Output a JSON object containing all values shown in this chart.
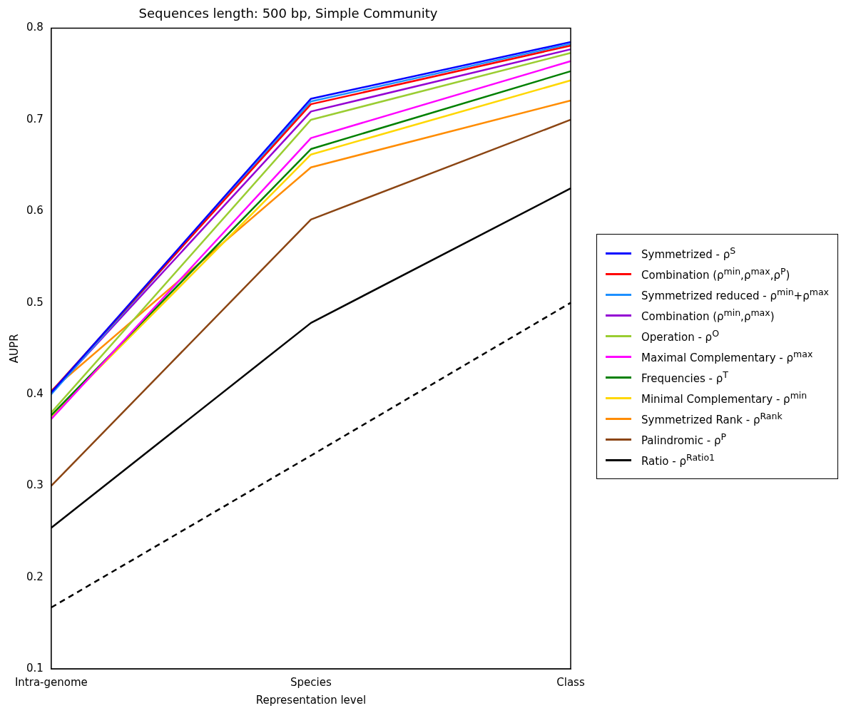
{
  "chart_data": {
    "type": "line",
    "title": "Sequences length: 500 bp, Simple Community",
    "xlabel": "Representation level",
    "ylabel": "AUPR",
    "categories": [
      "Intra-genome",
      "Species",
      "Class"
    ],
    "ylim": [
      0.1,
      0.8
    ],
    "yticks": [
      0.1,
      0.2,
      0.3,
      0.4,
      0.5,
      0.6,
      0.7,
      0.8
    ],
    "grid": false,
    "legend": "right",
    "marker": "none",
    "series": [
      {
        "name": "Symmetrized - ρ$^{S}$",
        "color": "#0000ff",
        "values": [
          0.402,
          0.723,
          0.785
        ]
      },
      {
        "name": "Combination (ρ$^{min}$,ρ$^{max}$,ρ$^{P}$)",
        "color": "#ff0000",
        "values": [
          0.403,
          0.717,
          0.781
        ]
      },
      {
        "name": "Symmetrized reduced - ρ$^{min}$+ρ$^{max}$",
        "color": "#1e90ff",
        "values": [
          0.4,
          0.72,
          0.783
        ]
      },
      {
        "name": "Combination (ρ$^{min}$,ρ$^{max}$)",
        "color": "#9400d3",
        "values": [
          0.401,
          0.709,
          0.777
        ]
      },
      {
        "name": "Operation - ρ$^{O}$",
        "color": "#9acd32",
        "values": [
          0.38,
          0.7,
          0.773
        ]
      },
      {
        "name": "Maximal Complementary - ρ$^{max}$",
        "color": "#ff00ff",
        "values": [
          0.373,
          0.68,
          0.764
        ]
      },
      {
        "name": "Frequencies - ρ$^{T}$",
        "color": "#008000",
        "values": [
          0.377,
          0.668,
          0.753
        ]
      },
      {
        "name": "Minimal Complementary - ρ$^{min}$",
        "color": "#ffd700",
        "values": [
          0.376,
          0.662,
          0.743
        ]
      },
      {
        "name": "Symmetrized Rank - ρ$^{Rank}$",
        "color": "#ff8c00",
        "values": [
          0.404,
          0.648,
          0.721
        ]
      },
      {
        "name": "Palindromic - ρ$^{P}$",
        "color": "#8b4513",
        "values": [
          0.3,
          0.591,
          0.7
        ]
      },
      {
        "name": "Ratio - ρ$^{Ratio1}$",
        "color": "#000000",
        "values": [
          0.254,
          0.478,
          0.625
        ]
      },
      {
        "color": "#000000",
        "line_style": "dashed",
        "values": [
          0.167,
          0.333,
          0.5
        ]
      }
    ]
  }
}
